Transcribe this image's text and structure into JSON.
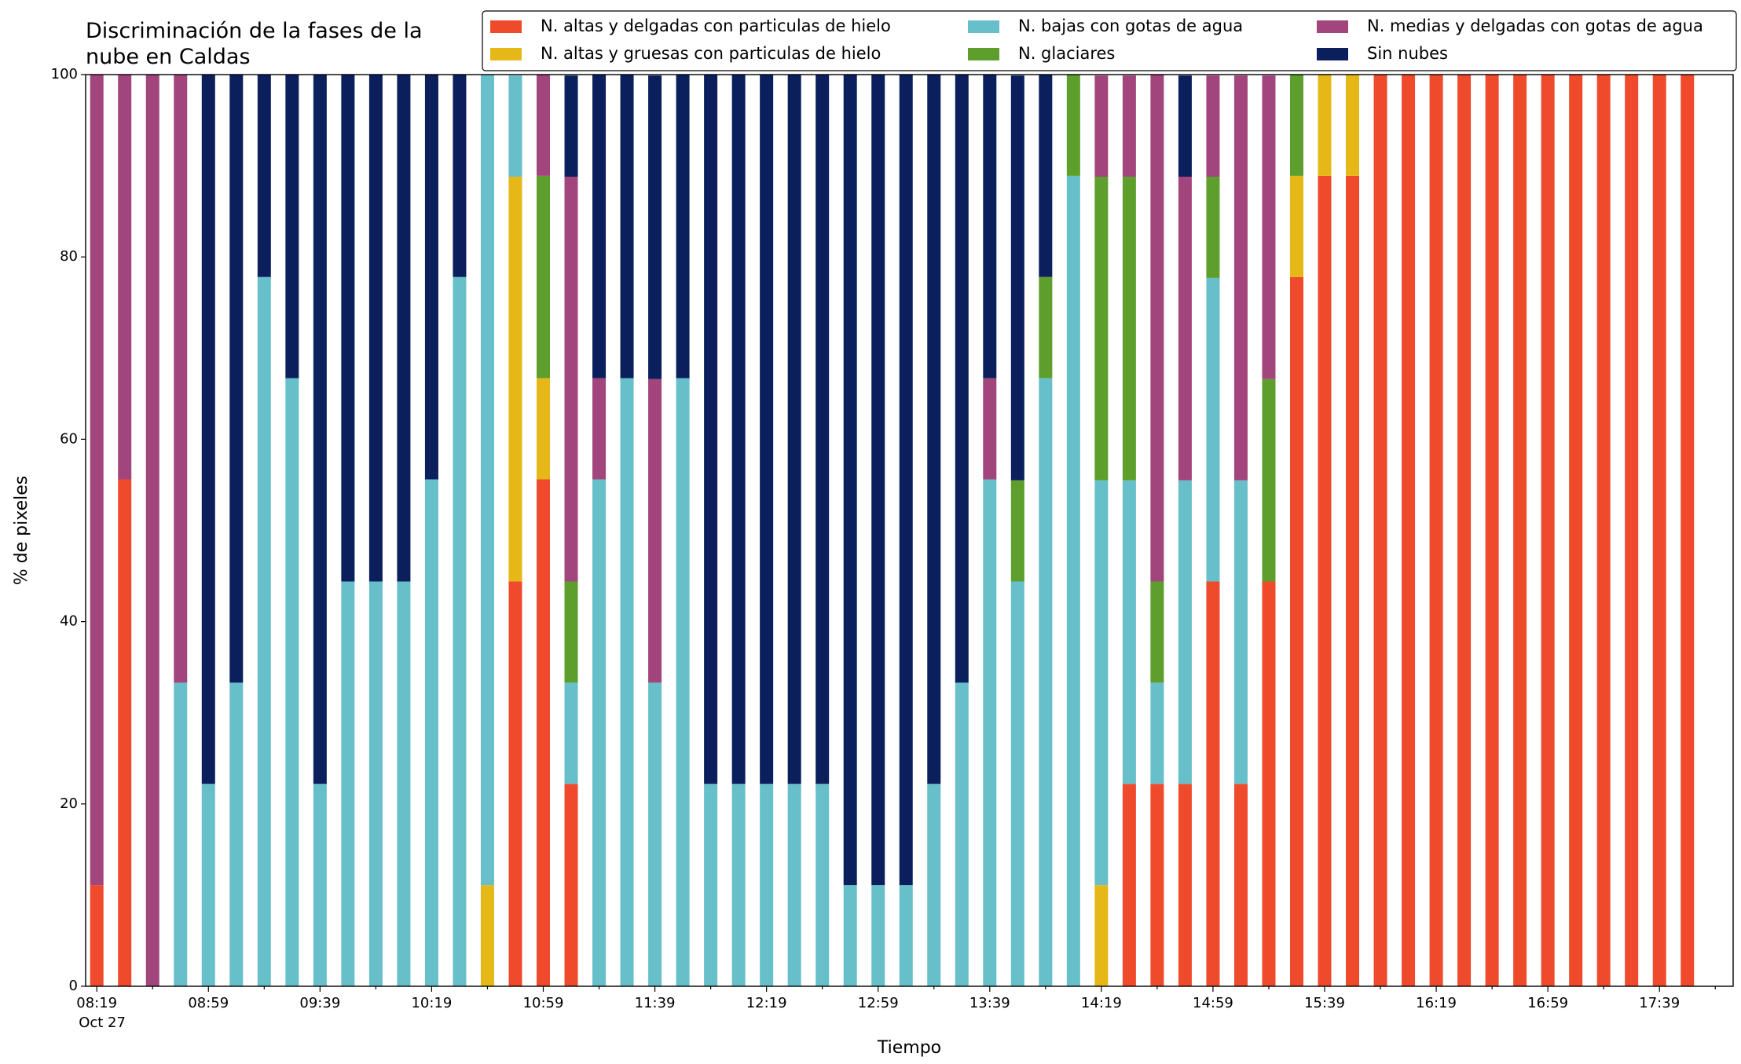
{
  "chart_data": {
    "type": "stacked_bar",
    "title": "Discriminación de la fases de la\nnube en Caldas",
    "xlabel": "Tiempo",
    "ylabel": "% de pixeles",
    "date_label": "Oct 27",
    "categories": [
      "08:19",
      null,
      null,
      null,
      "08:59",
      null,
      null,
      null,
      "09:39",
      null,
      null,
      null,
      "10:19",
      null,
      null,
      null,
      "10:59",
      null,
      null,
      null,
      "11:39",
      null,
      null,
      null,
      "12:19",
      null,
      null,
      null,
      "12:59",
      null,
      null,
      null,
      "13:39",
      null,
      null,
      null,
      "14:19",
      null,
      null,
      null,
      "14:59",
      null,
      null,
      null,
      "15:39",
      null,
      null,
      null,
      "16:19",
      null,
      null,
      null,
      "16:59",
      null,
      null,
      null,
      "17:39",
      null
    ],
    "ylim": [
      0,
      100
    ],
    "yticks": [
      0,
      20,
      40,
      60,
      80,
      100
    ],
    "legend": "top-right",
    "series": [
      {
        "name": "N. altas y delgadas con particulas de hielo",
        "color": "#ef4a2c",
        "values": [
          11.1,
          55.6,
          0,
          0,
          0,
          0,
          0,
          0,
          0,
          0,
          0,
          0,
          0,
          0,
          0,
          44.4,
          55.6,
          22.2,
          0,
          0,
          0,
          0,
          0,
          0,
          0,
          0,
          0,
          0,
          0,
          0,
          0,
          0,
          0,
          0,
          0,
          0,
          0,
          22.2,
          22.2,
          22.2,
          44.4,
          22.2,
          44.4,
          77.8,
          88.9,
          88.9,
          100,
          100,
          100,
          100,
          100,
          100,
          100,
          100,
          100,
          100,
          100,
          100
        ]
      },
      {
        "name": "N. altas y gruesas con particulas de hielo",
        "color": "#e6b817",
        "values": [
          0,
          0,
          0,
          0,
          0,
          0,
          0,
          0,
          0,
          0,
          0,
          0,
          0,
          0,
          11.1,
          44.4,
          11.1,
          0,
          0,
          0,
          0,
          0,
          0,
          0,
          0,
          0,
          0,
          0,
          0,
          0,
          0,
          0,
          0,
          0,
          0,
          0,
          11.1,
          0,
          0,
          0,
          0,
          0,
          0,
          11.1,
          11.1,
          11.1,
          0,
          0,
          0,
          0,
          0,
          0,
          0,
          0,
          0,
          0,
          0,
          0
        ]
      },
      {
        "name": "N. bajas con gotas de agua",
        "color": "#67bfca",
        "values": [
          0,
          0,
          0,
          33.3,
          22.2,
          33.3,
          77.8,
          66.7,
          22.2,
          44.4,
          44.4,
          44.4,
          55.6,
          77.8,
          88.9,
          11.1,
          0,
          11.1,
          55.6,
          66.7,
          33.3,
          66.7,
          22.2,
          22.2,
          22.2,
          22.2,
          22.2,
          11.1,
          11.1,
          11.1,
          22.2,
          33.3,
          55.6,
          44.4,
          66.7,
          88.9,
          44.4,
          33.3,
          11.1,
          33.3,
          33.3,
          33.3,
          0,
          0,
          0,
          0,
          0,
          0,
          0,
          0,
          0,
          0,
          0,
          0,
          0,
          0,
          0,
          0
        ]
      },
      {
        "name": "N. glaciares",
        "color": "#5d9e2d",
        "values": [
          0,
          0,
          0,
          0,
          0,
          0,
          0,
          0,
          0,
          0,
          0,
          0,
          0,
          0,
          0,
          0,
          22.2,
          11.1,
          0,
          0,
          0,
          0,
          0,
          0,
          0,
          0,
          0,
          0,
          0,
          0,
          0,
          0,
          0,
          11.1,
          11.1,
          11.1,
          33.3,
          33.3,
          11.1,
          0,
          11.1,
          0,
          22.2,
          11.1,
          0,
          0,
          0,
          0,
          0,
          0,
          0,
          0,
          0,
          0,
          0,
          0,
          0,
          0
        ]
      },
      {
        "name": "N. medias y delgadas con gotas de agua",
        "color": "#a2457c",
        "values": [
          88.9,
          44.4,
          100,
          66.7,
          0,
          0,
          0,
          0,
          0,
          0,
          0,
          0,
          0,
          0,
          0,
          0,
          11.1,
          44.4,
          11.1,
          0,
          33.3,
          0,
          0,
          0,
          0,
          0,
          0,
          0,
          0,
          0,
          0,
          0,
          11.1,
          0,
          0,
          0,
          11.1,
          11.1,
          55.6,
          33.3,
          11.1,
          44.4,
          33.3,
          0,
          0,
          0,
          0,
          0,
          0,
          0,
          0,
          0,
          0,
          0,
          0,
          0,
          0,
          0
        ]
      },
      {
        "name": "Sin nubes",
        "color": "#0a1f5c",
        "values": [
          0,
          0,
          0,
          0,
          77.8,
          66.7,
          22.2,
          33.3,
          77.8,
          55.6,
          55.6,
          55.6,
          44.4,
          22.2,
          0,
          0,
          0,
          11.1,
          33.3,
          33.3,
          33.3,
          33.3,
          77.8,
          77.8,
          77.8,
          77.8,
          77.8,
          88.9,
          88.9,
          88.9,
          77.8,
          66.7,
          33.3,
          44.4,
          22.2,
          0,
          0,
          0,
          0,
          11.1,
          0,
          0,
          0,
          0,
          0,
          0,
          0,
          0,
          0,
          0,
          0,
          0,
          0,
          0,
          0,
          0,
          0,
          0
        ]
      }
    ]
  }
}
